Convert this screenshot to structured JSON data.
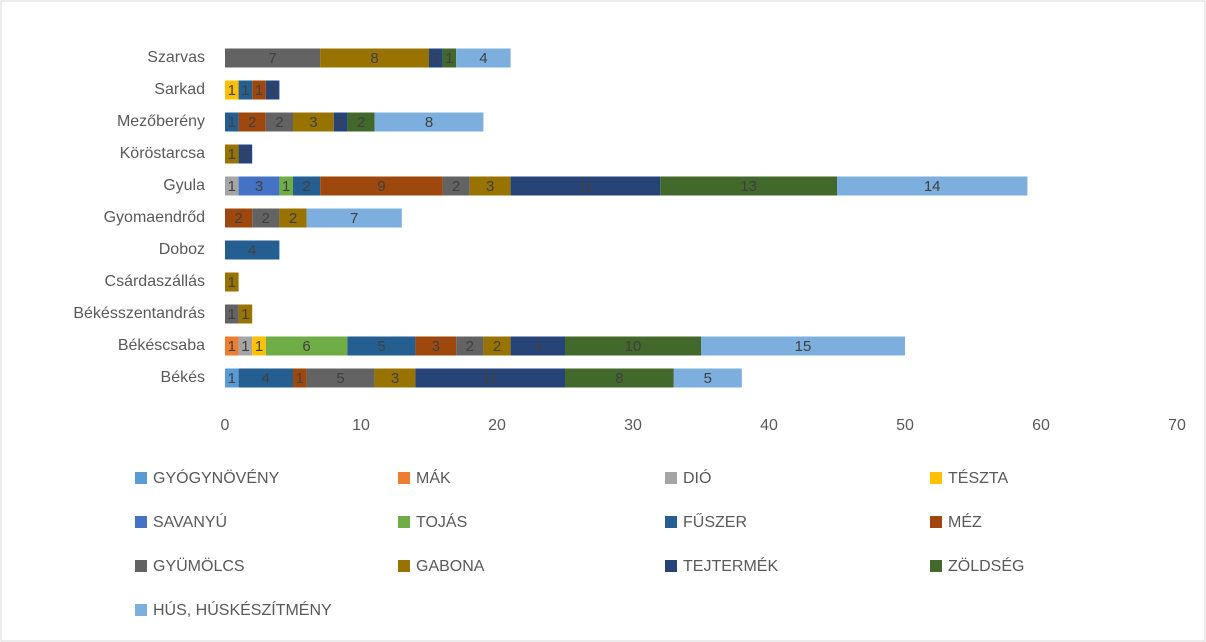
{
  "chart_data": {
    "type": "stacked-barh",
    "categories": [
      "Békés",
      "Békéscsaba",
      "Békésszentandrás",
      "Csárdaszállás",
      "Doboz",
      "Gyomaendrőd",
      "Gyula",
      "Köröstarcsa",
      "Mezőberény",
      "Sarkad",
      "Szarvas"
    ],
    "series": [
      {
        "name": "GYÓGYNÖVÉNY",
        "color": "#5b9bd5",
        "values": [
          1,
          null,
          null,
          null,
          null,
          null,
          null,
          null,
          null,
          null,
          null
        ]
      },
      {
        "name": "MÁK",
        "color": "#ed7d31",
        "values": [
          null,
          1,
          null,
          null,
          null,
          null,
          null,
          null,
          null,
          null,
          null
        ]
      },
      {
        "name": "DIÓ",
        "color": "#a5a5a5",
        "values": [
          null,
          1,
          null,
          null,
          null,
          null,
          1,
          null,
          null,
          null,
          null
        ]
      },
      {
        "name": "TÉSZTA",
        "color": "#ffc000",
        "values": [
          null,
          1,
          null,
          null,
          null,
          null,
          null,
          null,
          null,
          1,
          null
        ]
      },
      {
        "name": "SAVANYÚ",
        "color": "#4472c4",
        "values": [
          null,
          null,
          null,
          null,
          null,
          null,
          3,
          null,
          null,
          null,
          null
        ]
      },
      {
        "name": "TOJÁS",
        "color": "#70ad47",
        "values": [
          null,
          6,
          null,
          null,
          null,
          null,
          1,
          null,
          null,
          null,
          null
        ]
      },
      {
        "name": "FŰSZER",
        "color": "#255e91",
        "values": [
          4,
          5,
          null,
          null,
          4,
          null,
          2,
          null,
          1,
          1,
          null
        ]
      },
      {
        "name": "MÉZ",
        "color": "#9e480e",
        "values": [
          1,
          3,
          null,
          null,
          null,
          2,
          9,
          null,
          2,
          1,
          null
        ]
      },
      {
        "name": "GYÜMÖLCS",
        "color": "#636363",
        "values": [
          5,
          2,
          1,
          null,
          null,
          2,
          2,
          null,
          2,
          null,
          7
        ]
      },
      {
        "name": "GABONA",
        "color": "#997300",
        "values": [
          3,
          2,
          1,
          1,
          null,
          2,
          3,
          1,
          3,
          null,
          8
        ]
      },
      {
        "name": "TEJTERMÉK",
        "color": "#264478",
        "values": [
          11,
          4,
          null,
          null,
          null,
          null,
          11,
          1,
          1,
          1,
          1
        ]
      },
      {
        "name": "ZÖLDSÉG",
        "color": "#43682b",
        "values": [
          8,
          10,
          null,
          null,
          null,
          null,
          13,
          null,
          2,
          null,
          1
        ]
      },
      {
        "name": "HÚS, HÚSKÉSZÍTMÉNY",
        "color": "#7cafdd",
        "values": [
          5,
          15,
          null,
          null,
          null,
          7,
          14,
          null,
          8,
          null,
          4
        ]
      }
    ],
    "xlim": [
      0,
      70
    ],
    "xticks": [
      0,
      10,
      20,
      30,
      40,
      50,
      60,
      70
    ],
    "legend": "bottom"
  }
}
